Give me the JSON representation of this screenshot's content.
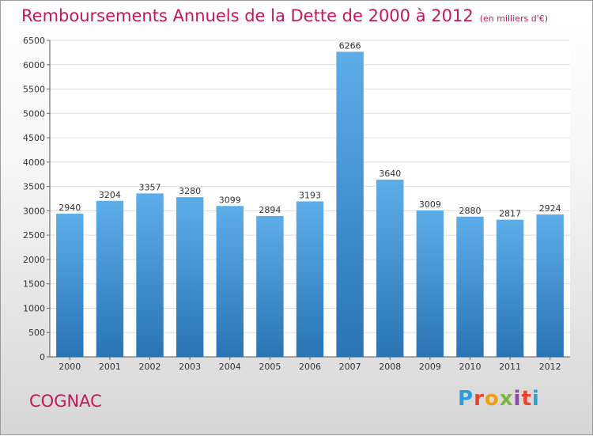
{
  "header": {
    "title": "Remboursements Annuels de la Dette de 2000 à 2012",
    "subtitle": "(en milliers d'€)"
  },
  "footer": {
    "city": "COGNAC",
    "logo_text": "Proxiti",
    "logo_colors": [
      "#2a9fd8",
      "#e8442e",
      "#f39c12",
      "#7cb342",
      "#8e44ad",
      "#e8442e",
      "#2a9fd8"
    ]
  },
  "colors": {
    "accent": "#c2185b",
    "bar_light": "#5dade8",
    "bar_dark": "#2a74b4",
    "grid": "#dddddd"
  },
  "chart_data": {
    "type": "bar",
    "categories": [
      "2000",
      "2001",
      "2002",
      "2003",
      "2004",
      "2005",
      "2006",
      "2007",
      "2008",
      "2009",
      "2010",
      "2011",
      "2012"
    ],
    "values": [
      2940,
      3204,
      3357,
      3280,
      3099,
      2894,
      3193,
      6266,
      3640,
      3009,
      2880,
      2817,
      2924
    ],
    "yticks": [
      0,
      500,
      1000,
      1500,
      2000,
      2500,
      3000,
      3500,
      4000,
      4500,
      5000,
      5500,
      6000,
      6500
    ],
    "ylim": [
      0,
      6500
    ],
    "grid": true,
    "data_labels": true
  }
}
